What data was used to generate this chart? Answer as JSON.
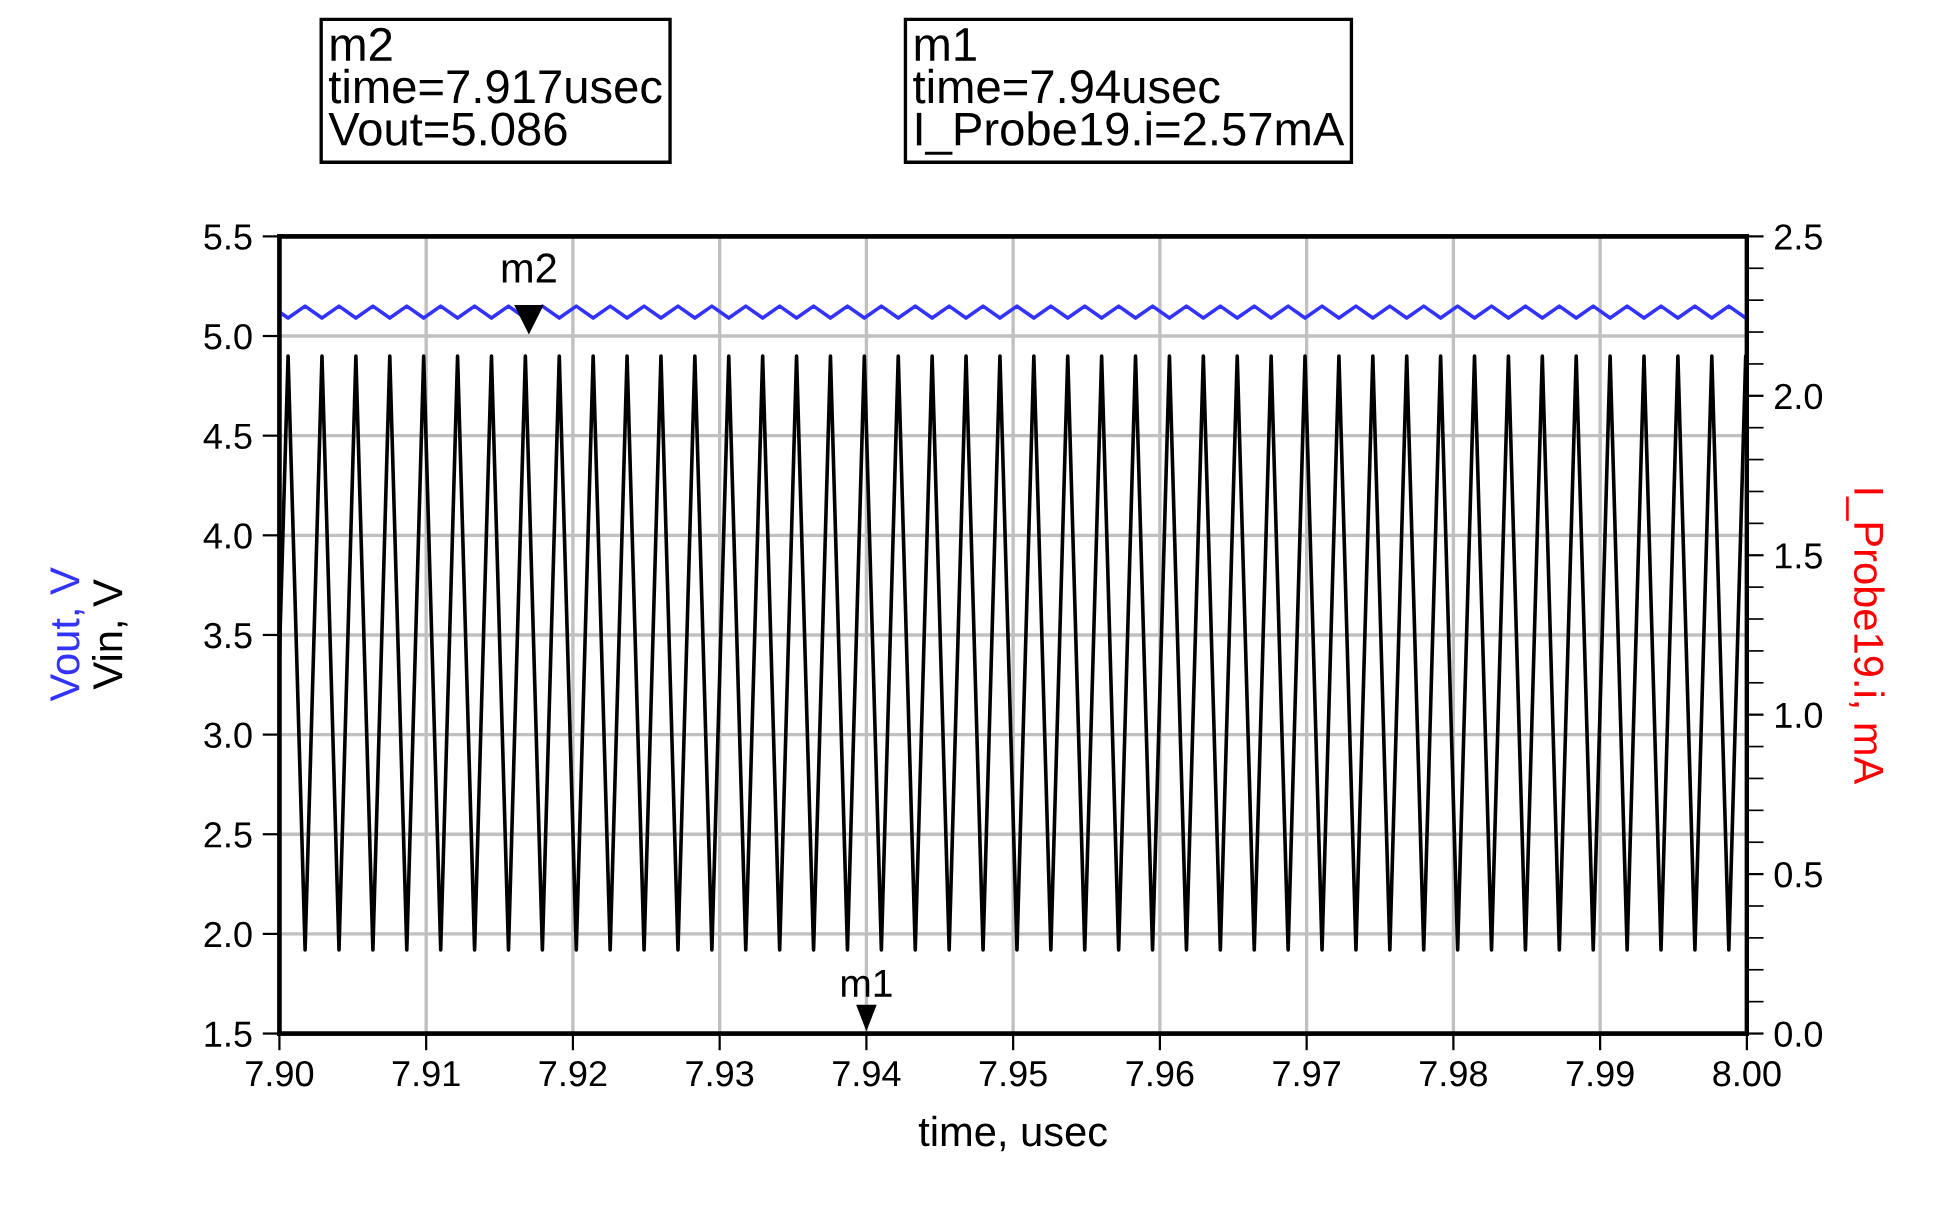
{
  "chart_data": {
    "type": "line",
    "xlabel": "time, usec",
    "ylabel": "Vin, V",
    "y2label": "I_Probe19.i, mA",
    "x": [
      7.9,
      7.90059,
      7.90175,
      7.9029,
      7.90406,
      7.90521,
      7.90637,
      7.90752,
      7.90868,
      7.90983,
      7.91099,
      7.91214,
      7.9133,
      7.91445,
      7.91561,
      7.91676,
      7.91792,
      7.91907,
      7.92023,
      7.92138,
      7.92254,
      7.92369,
      7.92485,
      7.926,
      7.92716,
      7.92831,
      7.92947,
      7.93062,
      7.93178,
      7.93293,
      7.93409,
      7.93524,
      7.9364,
      7.93755,
      7.93871,
      7.93986,
      7.94102,
      7.94217,
      7.94333,
      7.94448,
      7.94564,
      7.94679,
      7.94795,
      7.9491,
      7.95026,
      7.95141,
      7.95257,
      7.95372,
      7.95488,
      7.95603,
      7.95719,
      7.95834,
      7.9595,
      7.96065,
      7.96181,
      7.96296,
      7.96412,
      7.96527,
      7.96643,
      7.96758,
      7.96874,
      7.96989,
      7.97105,
      7.9722,
      7.97336,
      7.97451,
      7.97567,
      7.97682,
      7.97798,
      7.97913,
      7.98029,
      7.98144,
      7.9826,
      7.98375,
      7.98491,
      7.98606,
      7.98722,
      7.98837,
      7.98953,
      7.99068,
      7.99184,
      7.99299,
      7.99415,
      7.9953,
      7.99646,
      7.99761,
      7.99877,
      7.99992
    ],
    "series": [
      {
        "name": "Vout, V",
        "color": "#3333ff",
        "values": [
          5.12,
          5.09,
          5.15,
          5.09,
          5.15,
          5.09,
          5.15,
          5.09,
          5.15,
          5.09,
          5.15,
          5.09,
          5.15,
          5.09,
          5.15,
          5.09,
          5.15,
          5.09,
          5.15,
          5.09,
          5.15,
          5.09,
          5.15,
          5.09,
          5.15,
          5.09,
          5.15,
          5.09,
          5.15,
          5.09,
          5.15,
          5.09,
          5.15,
          5.09,
          5.15,
          5.09,
          5.15,
          5.09,
          5.15,
          5.09,
          5.15,
          5.09,
          5.15,
          5.09,
          5.15,
          5.09,
          5.15,
          5.09,
          5.15,
          5.09,
          5.15,
          5.09,
          5.15,
          5.09,
          5.15,
          5.09,
          5.15,
          5.09,
          5.15,
          5.09,
          5.15,
          5.09,
          5.15,
          5.09,
          5.15,
          5.09,
          5.15,
          5.09,
          5.15,
          5.09,
          5.15,
          5.09,
          5.15,
          5.09,
          5.15,
          5.09,
          5.15,
          5.09,
          5.15,
          5.09,
          5.15,
          5.09,
          5.15,
          5.09,
          5.15,
          5.09,
          5.15,
          5.09
        ]
      },
      {
        "color": "#000000",
        "values": [
          3.4,
          4.9,
          1.92,
          4.9,
          1.92,
          4.9,
          1.92,
          4.9,
          1.92,
          4.9,
          1.92,
          4.9,
          1.92,
          4.9,
          1.92,
          4.9,
          1.92,
          4.9,
          1.92,
          4.9,
          1.92,
          4.9,
          1.92,
          4.9,
          1.92,
          4.9,
          1.92,
          4.9,
          1.92,
          4.9,
          1.92,
          4.9,
          1.92,
          4.9,
          1.92,
          4.9,
          1.92,
          4.9,
          1.92,
          4.9,
          1.92,
          4.9,
          1.92,
          4.9,
          1.92,
          4.9,
          1.92,
          4.9,
          1.92,
          4.9,
          1.92,
          4.9,
          1.92,
          4.9,
          1.92,
          4.9,
          1.92,
          4.9,
          1.92,
          4.9,
          1.92,
          4.9,
          1.92,
          4.9,
          1.92,
          4.9,
          1.92,
          4.9,
          1.92,
          4.9,
          1.92,
          4.9,
          1.92,
          4.9,
          1.92,
          4.9,
          1.92,
          4.9,
          1.92,
          4.9,
          1.92,
          4.9,
          1.92,
          4.9,
          1.92,
          4.9,
          1.92,
          4.9
        ]
      }
    ],
    "xlim": [
      7.9,
      8.0
    ],
    "xticks": [
      {
        "value": 7.9,
        "label": "7.90"
      },
      {
        "value": 7.91,
        "label": "7.91"
      },
      {
        "value": 7.92,
        "label": "7.92"
      },
      {
        "value": 7.93,
        "label": "7.93"
      },
      {
        "value": 7.94,
        "label": "7.94"
      },
      {
        "value": 7.95,
        "label": "7.95"
      },
      {
        "value": 7.96,
        "label": "7.96"
      },
      {
        "value": 7.97,
        "label": "7.97"
      },
      {
        "value": 7.98,
        "label": "7.98"
      },
      {
        "value": 7.99,
        "label": "7.99"
      },
      {
        "value": 8.0,
        "label": "8.00"
      }
    ],
    "ylim": [
      1.5,
      5.5
    ],
    "yticks": [
      1.5,
      {
        "value": 2,
        "label": "2.0"
      },
      2.5,
      {
        "value": 3,
        "label": "3.0"
      },
      3.5,
      {
        "value": 4,
        "label": "4.0"
      },
      4.5,
      {
        "value": 5,
        "label": "5.0"
      },
      5.5
    ],
    "y2lim": [
      0,
      2.5
    ],
    "y2ticks": [
      {
        "value": 0,
        "label": "0.0"
      },
      0.5,
      {
        "value": 1,
        "label": "1.0"
      },
      1.5,
      {
        "value": 2,
        "label": "2.0"
      },
      2.5
    ],
    "annotations": [
      {
        "text": "m2",
        "x": 7.917,
        "y": 5.086
      },
      "m1",
      "m2\ntime=7.917usec\nVout=5.086",
      "m1\ntime=7.94usec\nI_Probe19.i=2.57mA"
    ],
    "grid": true,
    "legend": "left",
    "line_style": "solid",
    "marker": "none"
  }
}
